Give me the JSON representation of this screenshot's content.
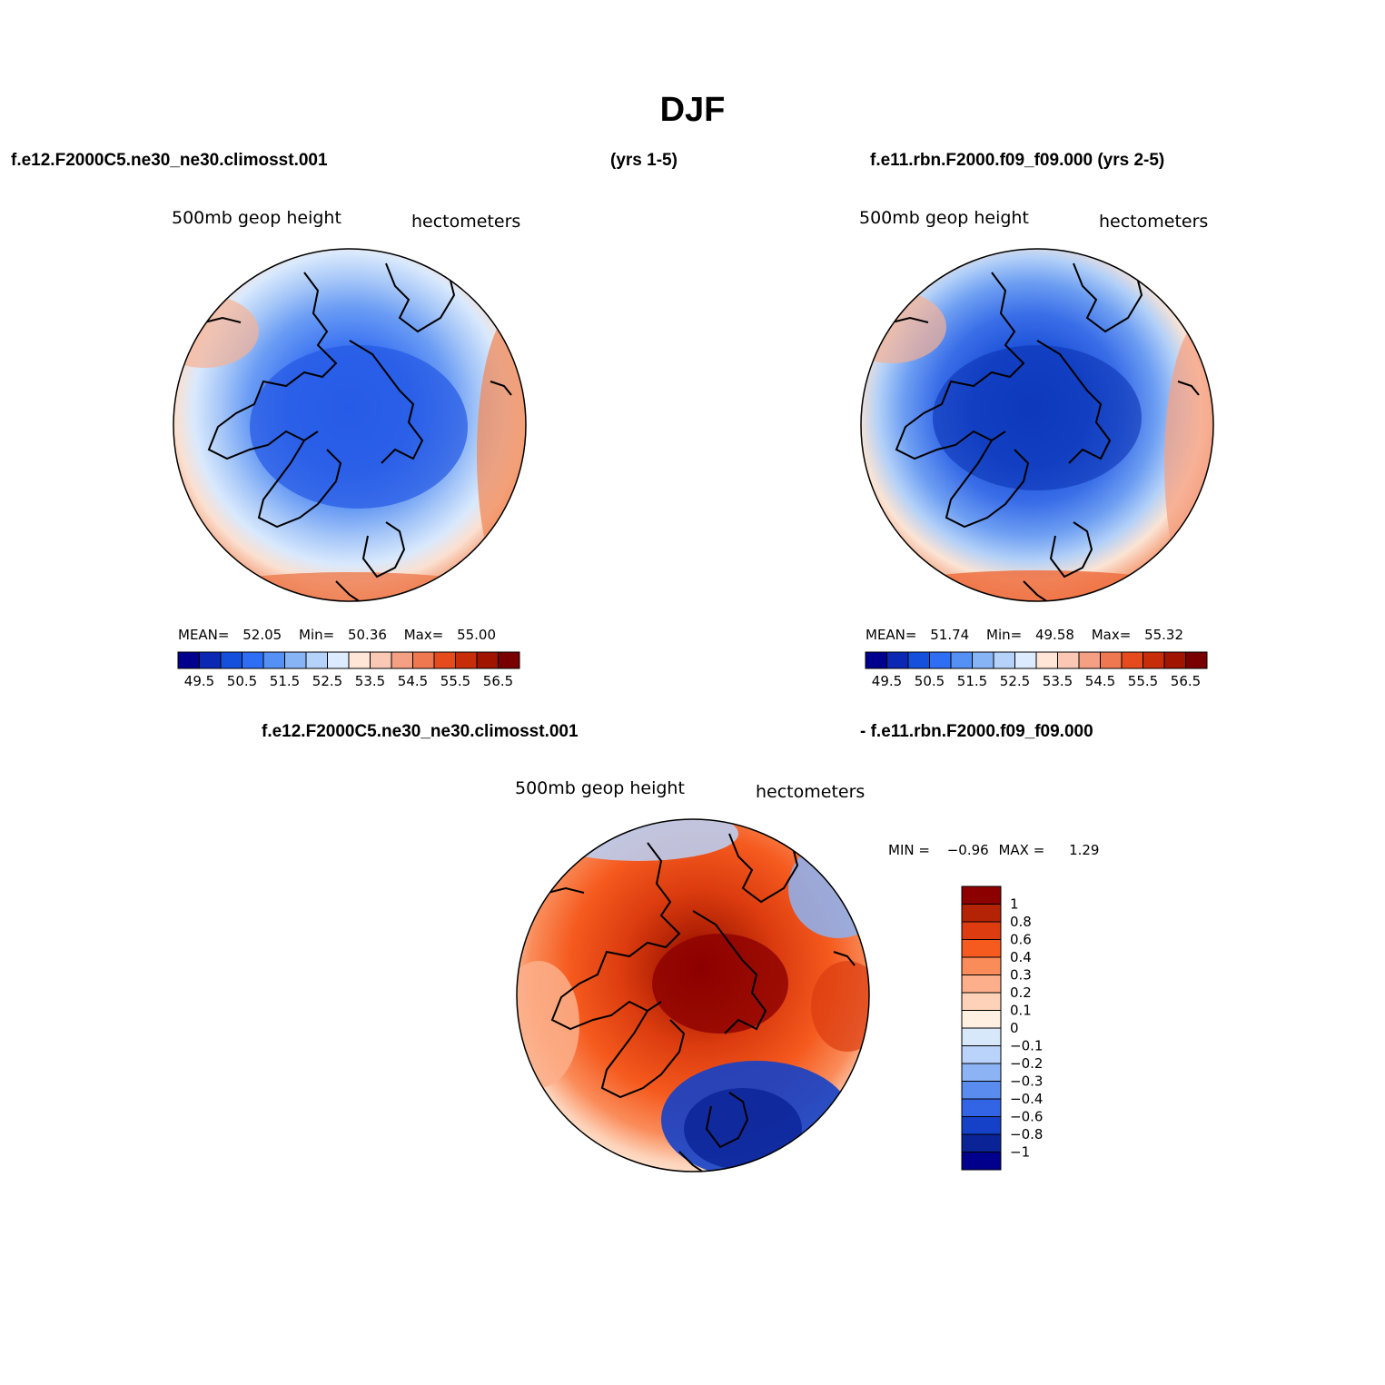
{
  "title": "DJF",
  "header": {
    "case1_label": "f.e12.F2000C5.ne30_ne30.climosst.001",
    "case1_years": "(yrs 1-5)",
    "case2_label": "f.e11.rbn.F2000.f09_f09.000 (yrs 2-5)",
    "diff_label_left": "f.e12.F2000C5.ne30_ne30.climosst.001",
    "diff_label_right": "- f.e11.rbn.F2000.f09_f09.000"
  },
  "panels": [
    {
      "variable": "500mb geop height",
      "units": "hectometers",
      "stats": {
        "mean_label": "MEAN=",
        "mean": "52.05",
        "min_label": "Min=",
        "min": "50.36",
        "max_label": "Max=",
        "max": "55.00"
      }
    },
    {
      "variable": "500mb geop height",
      "units": "hectometers",
      "stats": {
        "mean_label": "MEAN=",
        "mean": "51.74",
        "min_label": "Min=",
        "min": "49.58",
        "max_label": "Max=",
        "max": "55.32"
      }
    },
    {
      "variable": "500mb geop height",
      "units": "hectometers",
      "stats": {
        "min_label": "MIN =",
        "min": "−0.96",
        "max_label": "MAX =",
        "max": "1.29"
      }
    }
  ],
  "colorbar_abs": {
    "colors": [
      "#00008f",
      "#0a28b4",
      "#1450dc",
      "#2d6ef5",
      "#5591f5",
      "#87b4f5",
      "#b4d2fa",
      "#dcebff",
      "#ffe6d7",
      "#fac8b4",
      "#f5a082",
      "#f07850",
      "#e64b1e",
      "#c82d0a",
      "#a01400",
      "#780000"
    ],
    "labels": [
      "49.5",
      "50.5",
      "51.5",
      "52.5",
      "53.5",
      "54.5",
      "55.5",
      "56.5"
    ]
  },
  "colorbar_diff": {
    "colors": [
      "#8c0000",
      "#b42305",
      "#dc3c0f",
      "#f55a1e",
      "#fa8c5a",
      "#fcaf8a",
      "#fdd2b9",
      "#fff0e1",
      "#d7e8fb",
      "#b9d3fb",
      "#8cb4f5",
      "#5a8cf0",
      "#3264e6",
      "#1441c8",
      "#0a2396",
      "#00008c"
    ],
    "labels": [
      "1",
      "0.8",
      "0.6",
      "0.4",
      "0.3",
      "0.2",
      "0.1",
      "0",
      "−0.1",
      "−0.2",
      "−0.3",
      "−0.4",
      "−0.6",
      "−0.8",
      "−1"
    ]
  },
  "map_fields": {
    "panel1": [
      {
        "offset": 0.0,
        "color": "#2d66ee"
      },
      {
        "offset": 0.3,
        "color": "#3c74f2"
      },
      {
        "offset": 0.48,
        "color": "#6a9cf4"
      },
      {
        "offset": 0.62,
        "color": "#a8c8f8"
      },
      {
        "offset": 0.74,
        "color": "#d9e9fd"
      },
      {
        "offset": 0.83,
        "color": "#fbe0d0"
      },
      {
        "offset": 0.9,
        "color": "#f6b294"
      },
      {
        "offset": 1.0,
        "color": "#ee7a4e"
      }
    ],
    "panel2": [
      {
        "offset": 0.0,
        "color": "#1040c8"
      },
      {
        "offset": 0.28,
        "color": "#1d52d8"
      },
      {
        "offset": 0.45,
        "color": "#3a6ee8"
      },
      {
        "offset": 0.6,
        "color": "#6d9ef2"
      },
      {
        "offset": 0.72,
        "color": "#b2d0f8"
      },
      {
        "offset": 0.82,
        "color": "#fbe4d4"
      },
      {
        "offset": 0.9,
        "color": "#f6b090"
      },
      {
        "offset": 1.0,
        "color": "#ef6e40"
      }
    ],
    "panel3": [
      {
        "offset": 0.0,
        "color": "#8c0000"
      },
      {
        "offset": 0.18,
        "color": "#b42305"
      },
      {
        "offset": 0.36,
        "color": "#dc3c0f"
      },
      {
        "offset": 0.6,
        "color": "#f55a1e"
      },
      {
        "offset": 0.78,
        "color": "#fa8c5a"
      },
      {
        "offset": 0.9,
        "color": "#fdd2b9"
      },
      {
        "offset": 1.0,
        "color": "#fff0e1"
      }
    ]
  },
  "chart_data": {
    "type": "heatmap",
    "title": "DJF",
    "variable": "500mb geop height",
    "units": "hectometers",
    "projection": "polar stereographic (North Pole)",
    "panels": [
      {
        "case": "f.e12.F2000C5.ne30_ne30.climosst.001",
        "years": "yrs 1-5",
        "mean": 52.05,
        "min": 50.36,
        "max": 55.0
      },
      {
        "case": "f.e11.rbn.F2000.f09_f09.000",
        "years": "yrs 2-5",
        "mean": 51.74,
        "min": 49.58,
        "max": 55.32
      },
      {
        "case": "difference",
        "min": -0.96,
        "max": 1.29
      }
    ],
    "abs_levels": [
      49.5,
      50.5,
      51.5,
      52.5,
      53.5,
      54.5,
      55.5,
      56.5
    ],
    "diff_levels": [
      -1,
      -0.8,
      -0.6,
      -0.4,
      -0.3,
      -0.2,
      -0.1,
      0,
      0.1,
      0.2,
      0.3,
      0.4,
      0.6,
      0.8,
      1
    ]
  }
}
